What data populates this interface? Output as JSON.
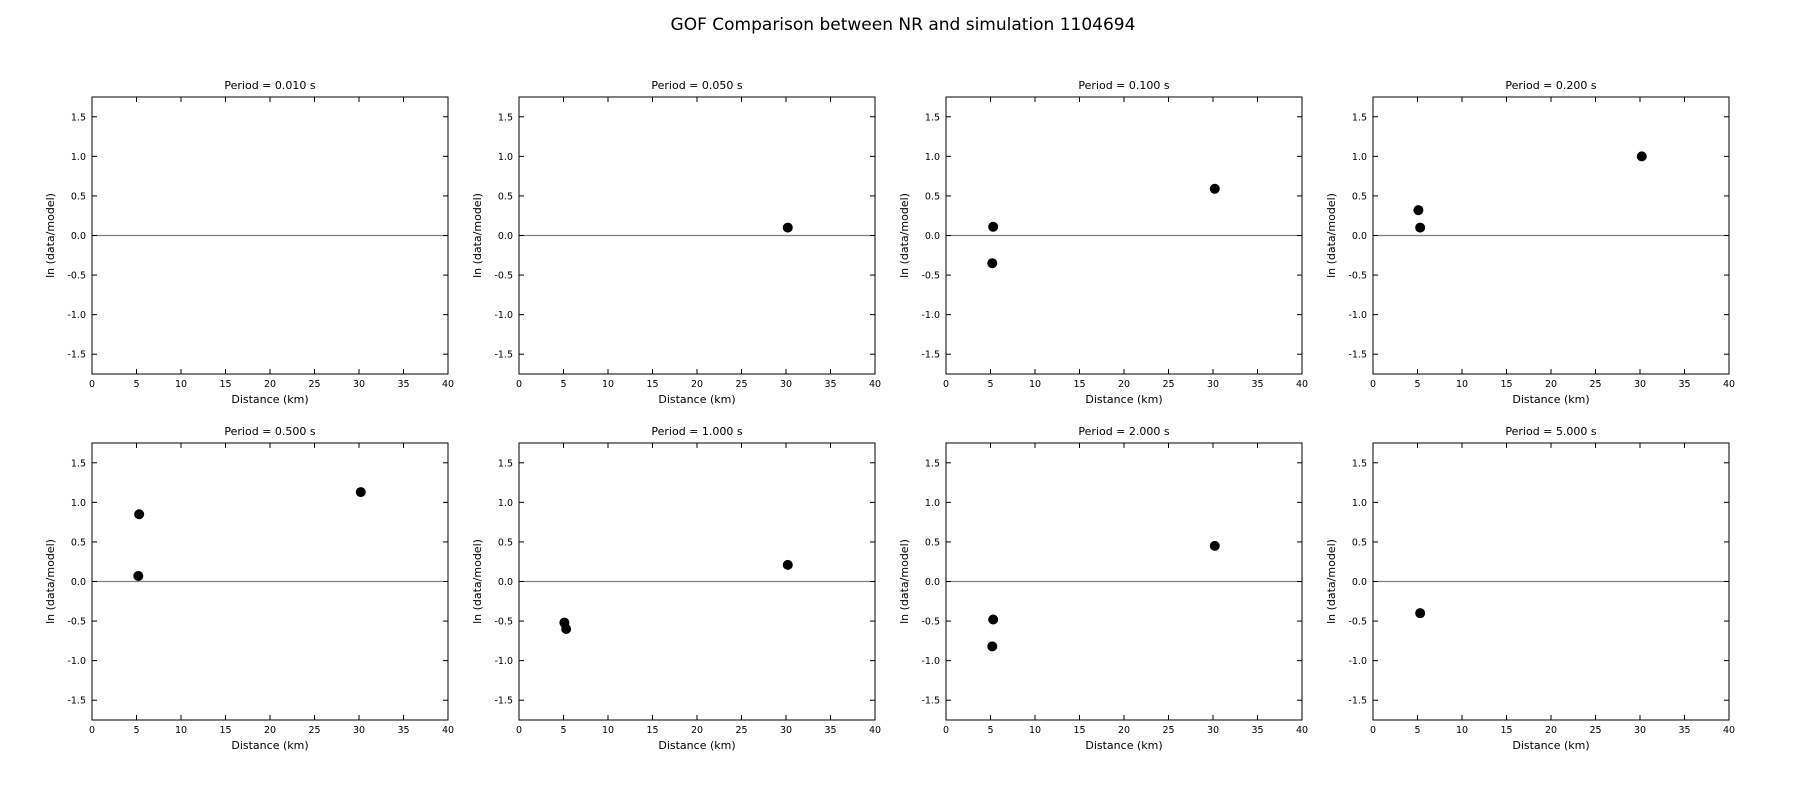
{
  "figure": {
    "title": "GOF Comparison between NR and simulation 1104694"
  },
  "chart_data": [
    {
      "type": "scatter",
      "title": "Period = 0.010 s",
      "xlabel": "Distance (km)",
      "ylabel": "ln (data/model)",
      "xlim": [
        0,
        40
      ],
      "ylim": [
        -1.75,
        1.75
      ],
      "xticks": [
        "0",
        "5",
        "10",
        "15",
        "20",
        "25",
        "30",
        "35",
        "40"
      ],
      "yticks": [
        "-1.5",
        "-1.0",
        "-0.5",
        "0.0",
        "0.5",
        "1.0",
        "1.5"
      ],
      "reference_line": 0,
      "grid": false,
      "points": []
    },
    {
      "type": "scatter",
      "title": "Period = 0.050 s",
      "xlabel": "Distance (km)",
      "ylabel": "ln (data/model)",
      "xlim": [
        0,
        40
      ],
      "ylim": [
        -1.75,
        1.75
      ],
      "xticks": [
        "0",
        "5",
        "10",
        "15",
        "20",
        "25",
        "30",
        "35",
        "40"
      ],
      "yticks": [
        "-1.5",
        "-1.0",
        "-0.5",
        "0.0",
        "0.5",
        "1.0",
        "1.5"
      ],
      "reference_line": 0,
      "grid": false,
      "points": [
        {
          "x": 30.2,
          "y": 0.1
        }
      ]
    },
    {
      "type": "scatter",
      "title": "Period = 0.100 s",
      "xlabel": "Distance (km)",
      "ylabel": "ln (data/model)",
      "xlim": [
        0,
        40
      ],
      "ylim": [
        -1.75,
        1.75
      ],
      "xticks": [
        "0",
        "5",
        "10",
        "15",
        "20",
        "25",
        "30",
        "35",
        "40"
      ],
      "yticks": [
        "-1.5",
        "-1.0",
        "-0.5",
        "0.0",
        "0.5",
        "1.0",
        "1.5"
      ],
      "reference_line": 0,
      "grid": false,
      "points": [
        {
          "x": 5.3,
          "y": 0.11
        },
        {
          "x": 5.2,
          "y": -0.35
        },
        {
          "x": 30.2,
          "y": 0.59
        }
      ]
    },
    {
      "type": "scatter",
      "title": "Period = 0.200 s",
      "xlabel": "Distance (km)",
      "ylabel": "ln (data/model)",
      "xlim": [
        0,
        40
      ],
      "ylim": [
        -1.75,
        1.75
      ],
      "xticks": [
        "0",
        "5",
        "10",
        "15",
        "20",
        "25",
        "30",
        "35",
        "40"
      ],
      "yticks": [
        "-1.5",
        "-1.0",
        "-0.5",
        "0.0",
        "0.5",
        "1.0",
        "1.5"
      ],
      "reference_line": 0,
      "grid": false,
      "points": [
        {
          "x": 5.1,
          "y": 0.32
        },
        {
          "x": 5.3,
          "y": 0.1
        },
        {
          "x": 30.2,
          "y": 1.0
        }
      ]
    },
    {
      "type": "scatter",
      "title": "Period = 0.500 s",
      "xlabel": "Distance (km)",
      "ylabel": "ln (data/model)",
      "xlim": [
        0,
        40
      ],
      "ylim": [
        -1.75,
        1.75
      ],
      "xticks": [
        "0",
        "5",
        "10",
        "15",
        "20",
        "25",
        "30",
        "35",
        "40"
      ],
      "yticks": [
        "-1.5",
        "-1.0",
        "-0.5",
        "0.0",
        "0.5",
        "1.0",
        "1.5"
      ],
      "reference_line": 0,
      "grid": false,
      "points": [
        {
          "x": 5.3,
          "y": 0.85
        },
        {
          "x": 5.2,
          "y": 0.07
        },
        {
          "x": 30.2,
          "y": 1.13
        }
      ]
    },
    {
      "type": "scatter",
      "title": "Period = 1.000 s",
      "xlabel": "Distance (km)",
      "ylabel": "ln (data/model)",
      "xlim": [
        0,
        40
      ],
      "ylim": [
        -1.75,
        1.75
      ],
      "xticks": [
        "0",
        "5",
        "10",
        "15",
        "20",
        "25",
        "30",
        "35",
        "40"
      ],
      "yticks": [
        "-1.5",
        "-1.0",
        "-0.5",
        "0.0",
        "0.5",
        "1.0",
        "1.5"
      ],
      "reference_line": 0,
      "grid": false,
      "points": [
        {
          "x": 5.1,
          "y": -0.52
        },
        {
          "x": 5.3,
          "y": -0.6
        },
        {
          "x": 30.2,
          "y": 0.21
        }
      ]
    },
    {
      "type": "scatter",
      "title": "Period = 2.000 s",
      "xlabel": "Distance (km)",
      "ylabel": "ln (data/model)",
      "xlim": [
        0,
        40
      ],
      "ylim": [
        -1.75,
        1.75
      ],
      "xticks": [
        "0",
        "5",
        "10",
        "15",
        "20",
        "25",
        "30",
        "35",
        "40"
      ],
      "yticks": [
        "-1.5",
        "-1.0",
        "-0.5",
        "0.0",
        "0.5",
        "1.0",
        "1.5"
      ],
      "reference_line": 0,
      "grid": false,
      "points": [
        {
          "x": 5.3,
          "y": -0.48
        },
        {
          "x": 5.2,
          "y": -0.82
        },
        {
          "x": 30.2,
          "y": 0.45
        }
      ]
    },
    {
      "type": "scatter",
      "title": "Period = 5.000 s",
      "xlabel": "Distance (km)",
      "ylabel": "ln (data/model)",
      "xlim": [
        0,
        40
      ],
      "ylim": [
        -1.75,
        1.75
      ],
      "xticks": [
        "0",
        "5",
        "10",
        "15",
        "20",
        "25",
        "30",
        "35",
        "40"
      ],
      "yticks": [
        "-1.5",
        "-1.0",
        "-0.5",
        "0.0",
        "0.5",
        "1.0",
        "1.5"
      ],
      "reference_line": 0,
      "grid": false,
      "points": [
        {
          "x": 5.3,
          "y": -0.4
        }
      ]
    }
  ]
}
